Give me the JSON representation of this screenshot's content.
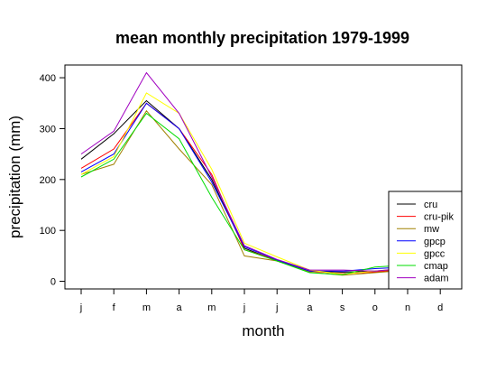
{
  "chart_data": {
    "type": "line",
    "title": "mean monthly precipitation 1979-1999",
    "xlabel": "month",
    "ylabel": "precipitation (mm)",
    "categories": [
      "j",
      "f",
      "m",
      "a",
      "m",
      "j",
      "j",
      "a",
      "s",
      "o",
      "n",
      "d"
    ],
    "yticks": [
      0,
      100,
      200,
      300,
      400
    ],
    "ylim": [
      -15,
      425
    ],
    "grid": false,
    "legend_position": "bottom-right",
    "series": [
      {
        "name": "cru",
        "color": "#000000",
        "values": [
          240,
          290,
          355,
          300,
          200,
          65,
          40,
          20,
          18,
          20,
          25,
          35
        ]
      },
      {
        "name": "cru-pik",
        "color": "#ff0000",
        "values": [
          222,
          260,
          350,
          300,
          210,
          62,
          42,
          20,
          15,
          18,
          24,
          34
        ]
      },
      {
        "name": "mw",
        "color": "#a08000",
        "values": [
          210,
          230,
          335,
          260,
          190,
          50,
          40,
          18,
          12,
          17,
          22,
          32
        ]
      },
      {
        "name": "gpcp",
        "color": "#0000ff",
        "values": [
          215,
          250,
          350,
          300,
          195,
          68,
          42,
          20,
          20,
          25,
          28,
          36
        ]
      },
      {
        "name": "gpcc",
        "color": "#ffff00",
        "values": [
          210,
          245,
          370,
          330,
          220,
          75,
          48,
          22,
          14,
          20,
          26,
          35
        ]
      },
      {
        "name": "cmap",
        "color": "#00dd00",
        "values": [
          205,
          240,
          330,
          280,
          165,
          62,
          40,
          17,
          13,
          28,
          32,
          40
        ]
      },
      {
        "name": "adam",
        "color": "#a000c0",
        "values": [
          250,
          295,
          410,
          330,
          205,
          70,
          43,
          22,
          22,
          20,
          26,
          36
        ]
      }
    ]
  }
}
